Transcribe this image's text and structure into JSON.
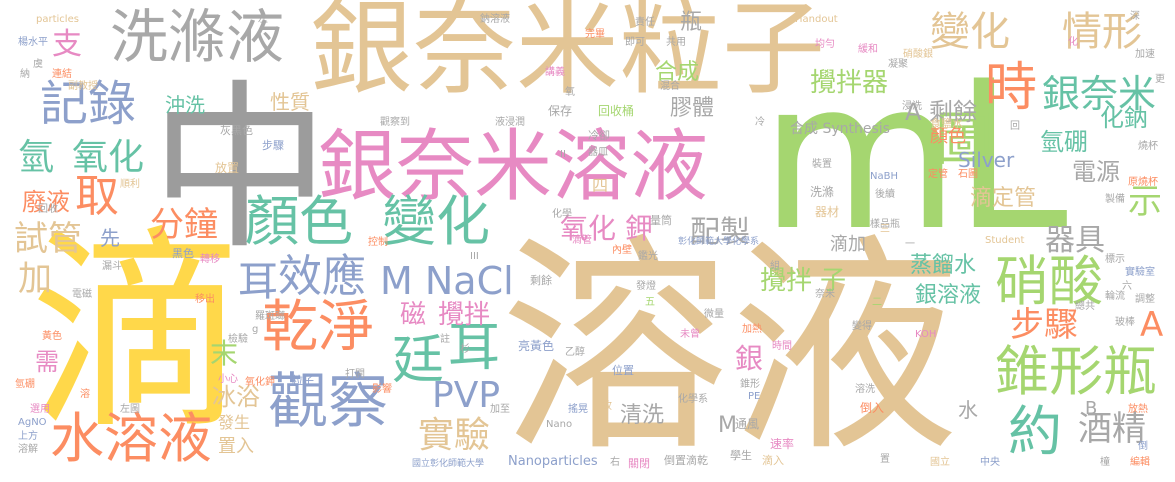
{
  "words": [
    {
      "text": "中",
      "color": "#9c9c9c"
    },
    {
      "text": "溶液",
      "color": "#e3c595"
    },
    {
      "text": "滴",
      "color": "#ffd84a"
    },
    {
      "text": "mL",
      "color": "#a5d670"
    },
    {
      "text": "銀奈米粒子",
      "color": "#e3c595"
    },
    {
      "text": "銀奈米溶液",
      "color": "#e78ac3"
    },
    {
      "text": "洗滌液",
      "color": "#a8a8a8"
    },
    {
      "text": "觀察",
      "color": "#8da0cb"
    },
    {
      "text": "乾淨",
      "color": "#fc8d62"
    },
    {
      "text": "顏色",
      "color": "#66c2a5"
    },
    {
      "text": "變化",
      "color": "#66c2a5"
    },
    {
      "text": "水溶液",
      "color": "#fc8d62"
    },
    {
      "text": "錐形瓶",
      "color": "#a5d670"
    },
    {
      "text": "硝酸",
      "color": "#a5d670"
    },
    {
      "text": "時",
      "color": "#fc8d62"
    },
    {
      "text": "圖",
      "color": "#a5d670"
    },
    {
      "text": "約",
      "color": "#66c2a5"
    },
    {
      "text": "記錄",
      "color": "#8da0cb"
    },
    {
      "text": "效應",
      "color": "#8da0cb"
    },
    {
      "text": "M NaCl",
      "color": "#8da0cb"
    },
    {
      "text": "廷",
      "color": "#66c2a5"
    },
    {
      "text": "耳",
      "color": "#66c2a5"
    },
    {
      "text": "耳",
      "color": "#8da0cb"
    },
    {
      "text": "取",
      "color": "#fc8d62"
    },
    {
      "text": "變化",
      "color": "#e3c595"
    },
    {
      "text": "情形",
      "color": "#e3c595"
    },
    {
      "text": "銀奈米",
      "color": "#66c2a5"
    },
    {
      "text": "氫",
      "color": "#66c2a5"
    },
    {
      "text": "氧化",
      "color": "#66c2a5"
    },
    {
      "text": "分鐘",
      "color": "#fc8d62"
    },
    {
      "text": "試管",
      "color": "#e3c595"
    },
    {
      "text": "加",
      "color": "#e3c595"
    },
    {
      "text": "PVP",
      "color": "#8da0cb"
    },
    {
      "text": "實驗",
      "color": "#e3c595"
    },
    {
      "text": "酒精",
      "color": "#a8a8a8"
    },
    {
      "text": "步驟",
      "color": "#fc8d62"
    },
    {
      "text": "A",
      "color": "#fc8d62"
    },
    {
      "text": "支",
      "color": "#e78ac3"
    },
    {
      "text": "配製",
      "color": "#a8a8a8"
    },
    {
      "text": "器具",
      "color": "#a8a8a8"
    },
    {
      "text": "示",
      "color": "#a5d670"
    },
    {
      "text": "攪拌器",
      "color": "#a5d670"
    },
    {
      "text": "A 剩餘",
      "color": "#a8a8a8"
    },
    {
      "text": "氫硼",
      "color": "#66c2a5"
    },
    {
      "text": "化鈉",
      "color": "#66c2a5"
    },
    {
      "text": "電源",
      "color": "#a8a8a8"
    },
    {
      "text": "滴定管",
      "color": "#e3c595"
    },
    {
      "text": "氧化",
      "color": "#e78ac3"
    },
    {
      "text": "鉀",
      "color": "#e78ac3"
    },
    {
      "text": "磁",
      "color": "#e78ac3"
    },
    {
      "text": "攪拌",
      "color": "#e78ac3"
    },
    {
      "text": "攪拌",
      "color": "#a5d670"
    },
    {
      "text": "子",
      "color": "#a5d670"
    },
    {
      "text": "蒸餾水",
      "color": "#66c2a5"
    },
    {
      "text": "銀溶液",
      "color": "#66c2a5"
    },
    {
      "text": "銀",
      "color": "#e78ac3"
    },
    {
      "text": "末",
      "color": "#a5d670"
    },
    {
      "text": "冰浴",
      "color": "#e3c595"
    },
    {
      "text": "清洗",
      "color": "#a8a8a8"
    },
    {
      "text": "廢液",
      "color": "#fc8d62"
    },
    {
      "text": "合成",
      "color": "#a5d670"
    },
    {
      "text": "瓶",
      "color": "#a8a8a8"
    },
    {
      "text": "膠體",
      "color": "#a8a8a8"
    },
    {
      "text": "沖洗",
      "color": "#66c2a5"
    },
    {
      "text": "性質",
      "color": "#e3c595"
    },
    {
      "text": "合成 Synthesis",
      "color": "#a8a8a8"
    },
    {
      "text": "Silver",
      "color": "#8da0cb"
    },
    {
      "text": "顏色",
      "color": "#fc8d62"
    },
    {
      "text": "先",
      "color": "#8da0cb"
    },
    {
      "text": "滴加",
      "color": "#a8a8a8"
    },
    {
      "text": "水",
      "color": "#a8a8a8"
    },
    {
      "text": "置入",
      "color": "#e3c595"
    },
    {
      "text": "M",
      "color": "#a8a8a8"
    },
    {
      "text": "需",
      "color": "#e78ac3"
    },
    {
      "text": "B",
      "color": "#a8a8a8"
    },
    {
      "text": "回收桶",
      "color": "#a5d670"
    },
    {
      "text": "保存",
      "color": "#a8a8a8"
    },
    {
      "text": "發生",
      "color": "#e3c595"
    },
    {
      "text": "四",
      "color": "#e3c595"
    },
    {
      "text": "食鹽水",
      "color": "#e3c595"
    },
    {
      "text": "particles",
      "color": "#e3c595"
    },
    {
      "text": "Handout",
      "color": "#e3c595"
    },
    {
      "text": "Nanoparticles",
      "color": "#8da0cb"
    },
    {
      "text": "國立彰化師範大學",
      "color": "#8da0cb"
    },
    {
      "text": "彰化師範大學化學系",
      "color": "#8da0cb"
    },
    {
      "text": "硝酸銀",
      "color": "#e3c595"
    },
    {
      "text": "加速",
      "color": "#a8a8a8"
    },
    {
      "text": "楊水平",
      "color": "#8da0cb"
    },
    {
      "text": "鈉溶液",
      "color": "#a8a8a8"
    },
    {
      "text": "共用",
      "color": "#a8a8a8"
    },
    {
      "text": "均勻",
      "color": "#e78ac3"
    },
    {
      "text": "緩和",
      "color": "#e78ac3"
    },
    {
      "text": "凝聚",
      "color": "#a8a8a8"
    },
    {
      "text": "深",
      "color": "#a8a8a8"
    },
    {
      "text": "講義",
      "color": "#e78ac3"
    },
    {
      "text": "完畢",
      "color": "#fc8d62"
    },
    {
      "text": "即可",
      "color": "#a8a8a8"
    },
    {
      "text": "副教授",
      "color": "#e3c595"
    },
    {
      "text": "連結",
      "color": "#fc8d62"
    },
    {
      "text": "混合",
      "color": "#a8a8a8"
    },
    {
      "text": "浸洗",
      "color": "#a8a8a8"
    },
    {
      "text": "液浸潤",
      "color": "#a8a8a8"
    },
    {
      "text": "觀察到",
      "color": "#a8a8a8"
    },
    {
      "text": "灰黑色",
      "color": "#a8a8a8"
    },
    {
      "text": "步驟",
      "color": "#8da0cb"
    },
    {
      "text": "放置",
      "color": "#e3c595"
    },
    {
      "text": "冷卻",
      "color": "#a8a8a8"
    },
    {
      "text": "器皿",
      "color": "#a8a8a8"
    },
    {
      "text": "裝置",
      "color": "#a8a8a8"
    },
    {
      "text": "NaBH",
      "color": "#8da0cb"
    },
    {
      "text": "定管",
      "color": "#fc8d62"
    },
    {
      "text": "石圖",
      "color": "#fc8d62"
    },
    {
      "text": "洗滌",
      "color": "#a8a8a8"
    },
    {
      "text": "器材",
      "color": "#e3c595"
    },
    {
      "text": "量筒",
      "color": "#a8a8a8"
    },
    {
      "text": "化學",
      "color": "#a8a8a8"
    },
    {
      "text": "控制",
      "color": "#fc8d62"
    },
    {
      "text": "黑色",
      "color": "#8da0cb"
    },
    {
      "text": "轉移",
      "color": "#e78ac3"
    },
    {
      "text": "電磁",
      "color": "#a8a8a8"
    },
    {
      "text": "移出",
      "color": "#fc8d62"
    },
    {
      "text": "剩餘",
      "color": "#a8a8a8"
    },
    {
      "text": "發燈",
      "color": "#a8a8a8"
    },
    {
      "text": "微量",
      "color": "#a8a8a8"
    },
    {
      "text": "亮黃色",
      "color": "#8da0cb"
    },
    {
      "text": "乙醇",
      "color": "#a8a8a8"
    },
    {
      "text": "加熱",
      "color": "#fc8d62"
    },
    {
      "text": "時間",
      "color": "#e78ac3"
    },
    {
      "text": "變得",
      "color": "#a8a8a8"
    },
    {
      "text": "KOH",
      "color": "#e78ac3"
    },
    {
      "text": "調整",
      "color": "#a8a8a8"
    },
    {
      "text": "玻棒",
      "color": "#a8a8a8"
    },
    {
      "text": "實驗室",
      "color": "#8da0cb"
    },
    {
      "text": "標示",
      "color": "#a8a8a8"
    },
    {
      "text": "Student",
      "color": "#e3c595"
    },
    {
      "text": "燒杯",
      "color": "#a8a8a8"
    },
    {
      "text": "原燒杯",
      "color": "#fc8d62"
    },
    {
      "text": "倒入",
      "color": "#fc8d62"
    },
    {
      "text": "放熱",
      "color": "#fc8d62"
    },
    {
      "text": "溶解",
      "color": "#a8a8a8"
    },
    {
      "text": "AgNO",
      "color": "#8da0cb"
    },
    {
      "text": "選用",
      "color": "#e78ac3"
    },
    {
      "text": "氫硼",
      "color": "#fc8d62"
    },
    {
      "text": "黃色",
      "color": "#fc8d62"
    },
    {
      "text": "小心",
      "color": "#e78ac3"
    },
    {
      "text": "氧化鉀",
      "color": "#fc8d62"
    },
    {
      "text": "粒子",
      "color": "#8da0cb"
    },
    {
      "text": "打開",
      "color": "#a8a8a8"
    },
    {
      "text": "影響",
      "color": "#fc8d62"
    },
    {
      "text": "位置",
      "color": "#8da0cb"
    },
    {
      "text": "化學系",
      "color": "#a8a8a8"
    },
    {
      "text": "PE",
      "color": "#8da0cb"
    },
    {
      "text": "通風",
      "color": "#a8a8a8"
    },
    {
      "text": "速率",
      "color": "#e78ac3"
    },
    {
      "text": "滴入",
      "color": "#e3c595"
    },
    {
      "text": "學生",
      "color": "#a8a8a8"
    },
    {
      "text": "關閉",
      "color": "#e78ac3"
    },
    {
      "text": "倒置滴乾",
      "color": "#a8a8a8"
    },
    {
      "text": "Nano",
      "color": "#a8a8a8"
    },
    {
      "text": "左圖",
      "color": "#a8a8a8"
    },
    {
      "text": "上方",
      "color": "#8da0cb"
    },
    {
      "text": "置",
      "color": "#a8a8a8"
    },
    {
      "text": "國立",
      "color": "#e3c595"
    },
    {
      "text": "中央",
      "color": "#8da0cb"
    },
    {
      "text": "編輯",
      "color": "#fc8d62"
    },
    {
      "text": "責任",
      "color": "#a8a8a8"
    },
    {
      "text": "回收",
      "color": "#a8a8a8"
    },
    {
      "text": "順利",
      "color": "#e3c595"
    },
    {
      "text": "漏斗",
      "color": "#a8a8a8"
    },
    {
      "text": "羅斑瑯",
      "color": "#a8a8a8"
    },
    {
      "text": "六",
      "color": "#a8a8a8"
    },
    {
      "text": "輪流",
      "color": "#a8a8a8"
    },
    {
      "text": "製備",
      "color": "#a8a8a8"
    },
    {
      "text": "後續",
      "color": "#a8a8a8"
    },
    {
      "text": "樣品瓶",
      "color": "#a8a8a8"
    },
    {
      "text": "滴管",
      "color": "#e78ac3"
    },
    {
      "text": "內壁",
      "color": "#fc8d62"
    },
    {
      "text": "鑑光",
      "color": "#a8a8a8"
    },
    {
      "text": "檢驗",
      "color": "#a8a8a8"
    },
    {
      "text": "未曾",
      "color": "#e78ac3"
    },
    {
      "text": "註",
      "color": "#a8a8a8"
    },
    {
      "text": "二",
      "color": "#a5d670"
    },
    {
      "text": "五",
      "color": "#a5d670"
    },
    {
      "text": "三",
      "color": "#e3c595"
    },
    {
      "text": "一",
      "color": "#a8a8a8"
    },
    {
      "text": "II",
      "color": "#a8a8a8"
    },
    {
      "text": "III",
      "color": "#a8a8a8"
    },
    {
      "text": "g",
      "color": "#a8a8a8"
    },
    {
      "text": "更",
      "color": "#a8a8a8"
    },
    {
      "text": "左",
      "color": "#a8a8a8"
    },
    {
      "text": "虞",
      "color": "#a8a8a8"
    },
    {
      "text": "納",
      "color": "#a8a8a8"
    },
    {
      "text": "化",
      "color": "#e78ac3"
    },
    {
      "text": "回",
      "color": "#a8a8a8"
    },
    {
      "text": "氧",
      "color": "#a8a8a8"
    },
    {
      "text": "冷",
      "color": "#a8a8a8"
    },
    {
      "text": "右",
      "color": "#a8a8a8"
    },
    {
      "text": "組",
      "color": "#a8a8a8"
    },
    {
      "text": "故",
      "color": "#e3c595"
    },
    {
      "text": "杉",
      "color": "#a8a8a8"
    },
    {
      "text": "奈米",
      "color": "#a8a8a8"
    },
    {
      "text": "總共",
      "color": "#a8a8a8"
    },
    {
      "text": "溶洗",
      "color": "#a8a8a8"
    },
    {
      "text": "錐形",
      "color": "#a8a8a8"
    },
    {
      "text": "搖晃",
      "color": "#8da0cb"
    },
    {
      "text": "加至",
      "color": "#a8a8a8"
    },
    {
      "text": "橦",
      "color": "#a8a8a8"
    },
    {
      "text": "倒",
      "color": "#8da0cb"
    },
    {
      "text": "溶",
      "color": "#fc8d62"
    }
  ]
}
